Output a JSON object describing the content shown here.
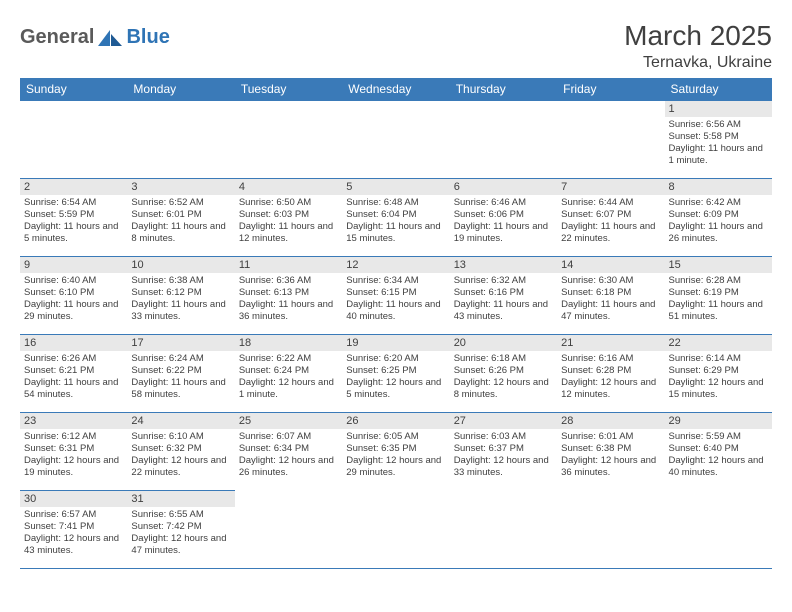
{
  "logo": {
    "text1": "General",
    "text2": "Blue"
  },
  "title": "March 2025",
  "location": "Ternavka, Ukraine",
  "colors": {
    "header_bg": "#3a7ab8",
    "header_text": "#ffffff",
    "daynum_bg": "#e8e8e8",
    "text": "#404040",
    "border": "#3a7ab8",
    "logo_gray": "#5a5a5a",
    "logo_blue": "#2f74b5"
  },
  "weekdays": [
    "Sunday",
    "Monday",
    "Tuesday",
    "Wednesday",
    "Thursday",
    "Friday",
    "Saturday"
  ],
  "weeks": [
    [
      null,
      null,
      null,
      null,
      null,
      null,
      {
        "n": "1",
        "sr": "Sunrise: 6:56 AM",
        "ss": "Sunset: 5:58 PM",
        "dl": "Daylight: 11 hours and 1 minute."
      }
    ],
    [
      {
        "n": "2",
        "sr": "Sunrise: 6:54 AM",
        "ss": "Sunset: 5:59 PM",
        "dl": "Daylight: 11 hours and 5 minutes."
      },
      {
        "n": "3",
        "sr": "Sunrise: 6:52 AM",
        "ss": "Sunset: 6:01 PM",
        "dl": "Daylight: 11 hours and 8 minutes."
      },
      {
        "n": "4",
        "sr": "Sunrise: 6:50 AM",
        "ss": "Sunset: 6:03 PM",
        "dl": "Daylight: 11 hours and 12 minutes."
      },
      {
        "n": "5",
        "sr": "Sunrise: 6:48 AM",
        "ss": "Sunset: 6:04 PM",
        "dl": "Daylight: 11 hours and 15 minutes."
      },
      {
        "n": "6",
        "sr": "Sunrise: 6:46 AM",
        "ss": "Sunset: 6:06 PM",
        "dl": "Daylight: 11 hours and 19 minutes."
      },
      {
        "n": "7",
        "sr": "Sunrise: 6:44 AM",
        "ss": "Sunset: 6:07 PM",
        "dl": "Daylight: 11 hours and 22 minutes."
      },
      {
        "n": "8",
        "sr": "Sunrise: 6:42 AM",
        "ss": "Sunset: 6:09 PM",
        "dl": "Daylight: 11 hours and 26 minutes."
      }
    ],
    [
      {
        "n": "9",
        "sr": "Sunrise: 6:40 AM",
        "ss": "Sunset: 6:10 PM",
        "dl": "Daylight: 11 hours and 29 minutes."
      },
      {
        "n": "10",
        "sr": "Sunrise: 6:38 AM",
        "ss": "Sunset: 6:12 PM",
        "dl": "Daylight: 11 hours and 33 minutes."
      },
      {
        "n": "11",
        "sr": "Sunrise: 6:36 AM",
        "ss": "Sunset: 6:13 PM",
        "dl": "Daylight: 11 hours and 36 minutes."
      },
      {
        "n": "12",
        "sr": "Sunrise: 6:34 AM",
        "ss": "Sunset: 6:15 PM",
        "dl": "Daylight: 11 hours and 40 minutes."
      },
      {
        "n": "13",
        "sr": "Sunrise: 6:32 AM",
        "ss": "Sunset: 6:16 PM",
        "dl": "Daylight: 11 hours and 43 minutes."
      },
      {
        "n": "14",
        "sr": "Sunrise: 6:30 AM",
        "ss": "Sunset: 6:18 PM",
        "dl": "Daylight: 11 hours and 47 minutes."
      },
      {
        "n": "15",
        "sr": "Sunrise: 6:28 AM",
        "ss": "Sunset: 6:19 PM",
        "dl": "Daylight: 11 hours and 51 minutes."
      }
    ],
    [
      {
        "n": "16",
        "sr": "Sunrise: 6:26 AM",
        "ss": "Sunset: 6:21 PM",
        "dl": "Daylight: 11 hours and 54 minutes."
      },
      {
        "n": "17",
        "sr": "Sunrise: 6:24 AM",
        "ss": "Sunset: 6:22 PM",
        "dl": "Daylight: 11 hours and 58 minutes."
      },
      {
        "n": "18",
        "sr": "Sunrise: 6:22 AM",
        "ss": "Sunset: 6:24 PM",
        "dl": "Daylight: 12 hours and 1 minute."
      },
      {
        "n": "19",
        "sr": "Sunrise: 6:20 AM",
        "ss": "Sunset: 6:25 PM",
        "dl": "Daylight: 12 hours and 5 minutes."
      },
      {
        "n": "20",
        "sr": "Sunrise: 6:18 AM",
        "ss": "Sunset: 6:26 PM",
        "dl": "Daylight: 12 hours and 8 minutes."
      },
      {
        "n": "21",
        "sr": "Sunrise: 6:16 AM",
        "ss": "Sunset: 6:28 PM",
        "dl": "Daylight: 12 hours and 12 minutes."
      },
      {
        "n": "22",
        "sr": "Sunrise: 6:14 AM",
        "ss": "Sunset: 6:29 PM",
        "dl": "Daylight: 12 hours and 15 minutes."
      }
    ],
    [
      {
        "n": "23",
        "sr": "Sunrise: 6:12 AM",
        "ss": "Sunset: 6:31 PM",
        "dl": "Daylight: 12 hours and 19 minutes."
      },
      {
        "n": "24",
        "sr": "Sunrise: 6:10 AM",
        "ss": "Sunset: 6:32 PM",
        "dl": "Daylight: 12 hours and 22 minutes."
      },
      {
        "n": "25",
        "sr": "Sunrise: 6:07 AM",
        "ss": "Sunset: 6:34 PM",
        "dl": "Daylight: 12 hours and 26 minutes."
      },
      {
        "n": "26",
        "sr": "Sunrise: 6:05 AM",
        "ss": "Sunset: 6:35 PM",
        "dl": "Daylight: 12 hours and 29 minutes."
      },
      {
        "n": "27",
        "sr": "Sunrise: 6:03 AM",
        "ss": "Sunset: 6:37 PM",
        "dl": "Daylight: 12 hours and 33 minutes."
      },
      {
        "n": "28",
        "sr": "Sunrise: 6:01 AM",
        "ss": "Sunset: 6:38 PM",
        "dl": "Daylight: 12 hours and 36 minutes."
      },
      {
        "n": "29",
        "sr": "Sunrise: 5:59 AM",
        "ss": "Sunset: 6:40 PM",
        "dl": "Daylight: 12 hours and 40 minutes."
      }
    ],
    [
      {
        "n": "30",
        "sr": "Sunrise: 6:57 AM",
        "ss": "Sunset: 7:41 PM",
        "dl": "Daylight: 12 hours and 43 minutes."
      },
      {
        "n": "31",
        "sr": "Sunrise: 6:55 AM",
        "ss": "Sunset: 7:42 PM",
        "dl": "Daylight: 12 hours and 47 minutes."
      },
      null,
      null,
      null,
      null,
      null
    ]
  ]
}
